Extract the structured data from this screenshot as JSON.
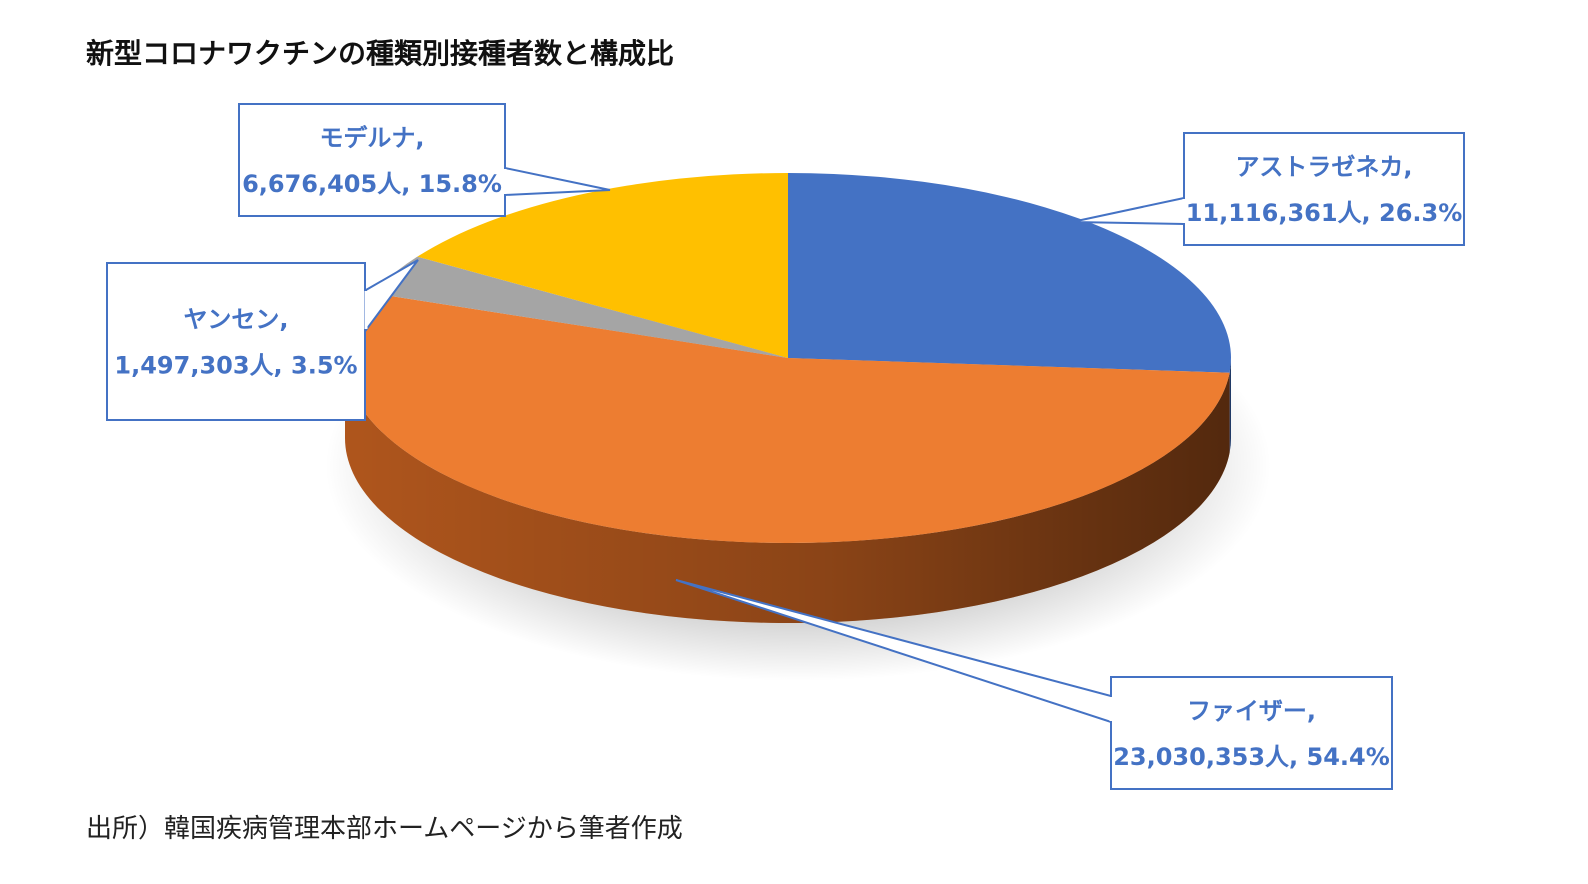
{
  "title": "新型コロナワクチンの種類別接種者数と構成比",
  "source": "出所）韓国疾病管理本部ホームページから筆者作成",
  "colors": {
    "label_text": "#4472C4",
    "callout_border": "#4472C4"
  },
  "chart_data": {
    "type": "pie",
    "style": "3d",
    "unit": "人",
    "slices": [
      {
        "name": "アストラゼネカ",
        "value": 11116361,
        "value_label": "11,116,361人",
        "percent": 26.3,
        "percent_label": "26.3%",
        "color": "#4472C4",
        "side_color": "#2F5597"
      },
      {
        "name": "ファイザー",
        "value": 23030353,
        "value_label": "23,030,353人",
        "percent": 54.4,
        "percent_label": "54.4%",
        "color": "#ED7D31",
        "side_color": "#B85A1E"
      },
      {
        "name": "ヤンセン",
        "value": 1497303,
        "value_label": "1,497,303人",
        "percent": 3.5,
        "percent_label": "3.5%",
        "color": "#A5A5A5",
        "side_color": "#7F7F7F"
      },
      {
        "name": "モデルナ",
        "value": 6676405,
        "value_label": "6,676,405人",
        "percent": 15.8,
        "percent_label": "15.8%",
        "color": "#FFC000",
        "side_color": "#BF9000"
      }
    ]
  }
}
